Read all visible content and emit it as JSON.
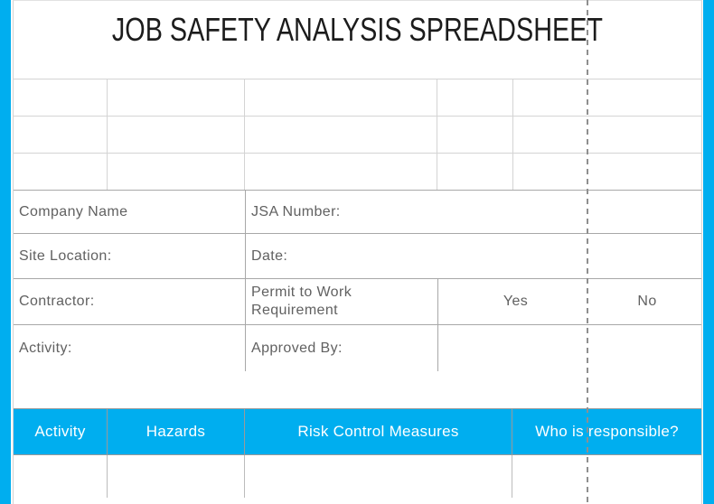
{
  "title": "JOB SAFETY ANALYSIS SPREADSHEET",
  "colors": {
    "accent_blue": "#00AEEF",
    "header_text": "#FFFFFF",
    "label_text": "#616161",
    "title_text": "#1C1C1C",
    "grid_line_light": "#D4D4D4",
    "grid_line_medium": "#A8A8A8",
    "page_break_gray": "#8F8F8F"
  },
  "info": {
    "company_label": "Company Name",
    "jsa_number_label": "JSA Number:",
    "site_location_label": "Site Location:",
    "date_label": "Date:",
    "contractor_label": "Contractor:",
    "permit_label": "Permit to Work Requirement",
    "permit_yes": "Yes",
    "permit_no": "No",
    "activity_label": "Activity:",
    "approved_by_label": "Approved By:"
  },
  "table": {
    "headers": [
      "Activity",
      "Hazards",
      "Risk Control Measures",
      "Who is responsible?"
    ]
  }
}
